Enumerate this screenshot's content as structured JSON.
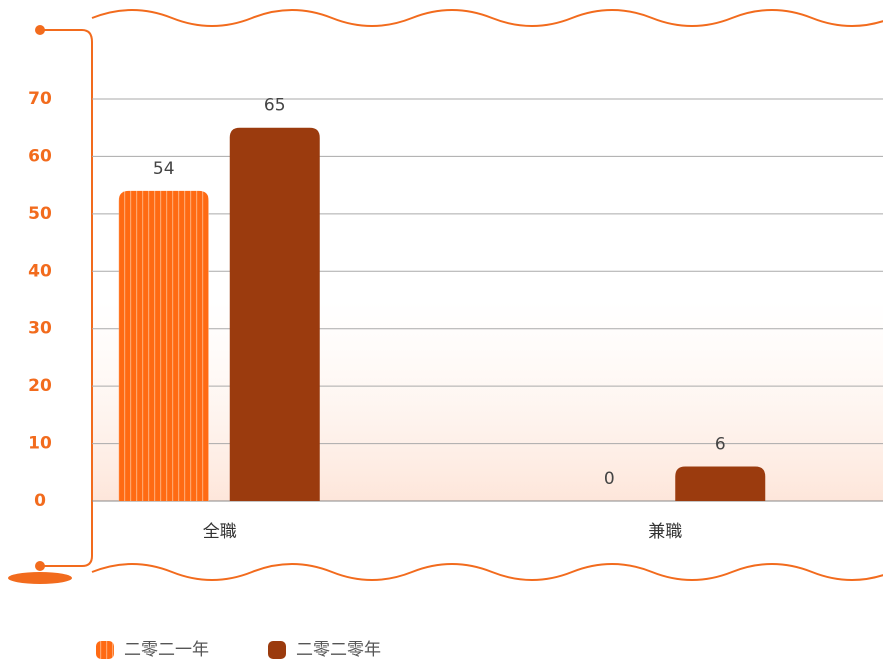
{
  "chart_data": {
    "type": "bar",
    "categories": [
      "全職",
      "兼職"
    ],
    "series": [
      {
        "name": "二零二一年",
        "color": "#ff6a13",
        "values": [
          54,
          0
        ]
      },
      {
        "name": "二零二零年",
        "color": "#9b3b0e",
        "values": [
          65,
          6
        ]
      }
    ],
    "ylim": [
      0,
      70
    ],
    "yticks": [
      0,
      10,
      20,
      30,
      40,
      50,
      60,
      70
    ],
    "grid": true
  }
}
